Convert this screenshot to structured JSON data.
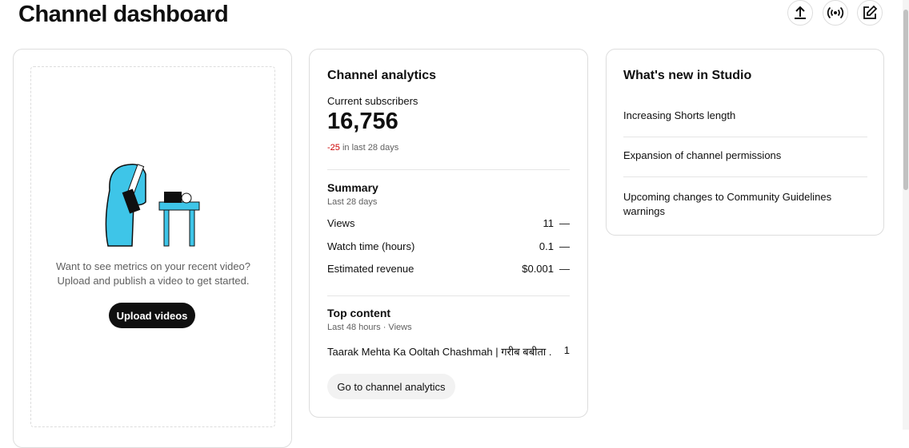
{
  "header": {
    "title": "Channel dashboard"
  },
  "upload_card": {
    "message_line1": "Want to see metrics on your recent video?",
    "message_line2": "Upload and publish a video to get started.",
    "button": "Upload videos"
  },
  "analytics_card": {
    "title": "Channel analytics",
    "subscribers_label": "Current subscribers",
    "subscribers": "16,756",
    "change": "-25",
    "change_period": "in last 28 days",
    "summary": {
      "title": "Summary",
      "period": "Last 28 days",
      "rows": [
        [
          "Views",
          "11",
          "—"
        ],
        [
          "Watch time (hours)",
          "0.1",
          "—"
        ],
        [
          "Estimated revenue",
          "$0.001",
          "—"
        ]
      ]
    },
    "top_content": {
      "title": "Top content",
      "period": "Last 48 hours · Views",
      "rows": [
        [
          "Taarak Mehta Ka Ooltah Chashmah | गरीब बबीता ...",
          "1"
        ]
      ]
    },
    "button": "Go to channel analytics"
  },
  "news_card": {
    "title": "What's new in Studio",
    "items": [
      "Increasing Shorts length",
      "Expansion of channel permissions",
      "Upcoming changes to Community Guidelines warnings"
    ]
  }
}
